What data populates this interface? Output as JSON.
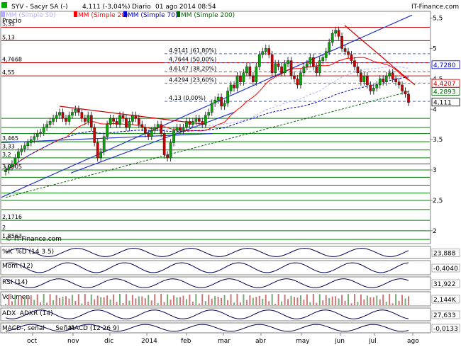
{
  "header": {
    "ticker": "SYV - Sacyr SA (-)",
    "last": "4,111 (-3,04%)",
    "period": "Diario",
    "datetime": "01 ago 2014 08:54",
    "site": "IT-Finance.com"
  },
  "legend": {
    "price": "Precio",
    "mm50": "MM (Simple 50)",
    "mm20": "MM (Simple 20)",
    "mm70": "MM (Simple 70)",
    "mm200": "MM (Simple 200)"
  },
  "watermark": "© IT-Finance.com",
  "colors": {
    "up": "#00aa00",
    "down": "#cc0000",
    "mm20": "#ff0000",
    "mm50": "#b0b0ff",
    "mm70": "#0000cc",
    "mm200": "#006600",
    "support": "#008000",
    "resist": "#cc0000",
    "fib": "#5070c0"
  },
  "chart_data": {
    "type": "candlestick",
    "x_ticks": [
      "oct",
      "nov",
      "dic",
      "2014",
      "feb",
      "mar",
      "abr",
      "may",
      "jun",
      "jul",
      "ago"
    ],
    "y_ticks": [
      "5,5",
      "5",
      "4,5",
      "4",
      "3,5",
      "3",
      "2,5",
      "2"
    ],
    "ylim": [
      1.8,
      5.6
    ],
    "left_levels": [
      {
        "label": "5,35",
        "value": 5.35
      },
      {
        "label": "5,13",
        "value": 5.13
      },
      {
        "label": "4,7668",
        "value": 4.7668
      },
      {
        "label": "4,55",
        "value": 4.55
      },
      {
        "label": "3,465",
        "value": 3.465
      },
      {
        "label": "3,33",
        "value": 3.33
      },
      {
        "label": "3,2",
        "value": 3.2
      },
      {
        "label": "3,0005",
        "value": 3.0005
      },
      {
        "label": "2,1716",
        "value": 2.1716
      },
      {
        "label": "2",
        "value": 2.0
      },
      {
        "label": "1,8563",
        "value": 1.8563
      }
    ],
    "fibonacci": [
      {
        "label": "4,9141 (61,80%)",
        "value": 4.9141
      },
      {
        "label": "4,7644 (50,00%)",
        "value": 4.7644
      },
      {
        "label": "4,6147 (38,20%)",
        "value": 4.6147
      },
      {
        "label": "4,4294 (23,60%)",
        "value": 4.4294
      },
      {
        "label": "4,13 (0,00%)",
        "value": 4.13
      }
    ],
    "right_labels": [
      {
        "label": "4,7280",
        "value": 4.728,
        "color": "#0000cc"
      },
      {
        "label": "4,4207",
        "value": 4.4207,
        "color": "#cc0000"
      },
      {
        "label": "4,2893",
        "value": 4.2893,
        "color": "#006600"
      },
      {
        "label": "4,111",
        "value": 4.111,
        "color": "#000000"
      }
    ],
    "closes": [
      3.0,
      3.05,
      3.1,
      3.2,
      3.3,
      3.35,
      3.4,
      3.45,
      3.5,
      3.55,
      3.6,
      3.62,
      3.7,
      3.75,
      3.8,
      3.85,
      3.9,
      3.95,
      3.85,
      3.8,
      3.9,
      3.95,
      4.0,
      3.95,
      3.85,
      3.8,
      3.9,
      3.7,
      3.45,
      3.2,
      3.3,
      3.55,
      3.75,
      3.85,
      3.8,
      3.75,
      3.9,
      3.85,
      3.7,
      3.8,
      3.9,
      3.85,
      3.75,
      3.7,
      3.6,
      3.55,
      3.65,
      3.7,
      3.75,
      3.6,
      3.25,
      3.2,
      3.45,
      3.65,
      3.7,
      3.65,
      3.7,
      3.8,
      3.75,
      3.8,
      3.85,
      3.8,
      3.75,
      3.9,
      3.95,
      4.1,
      4.15,
      4.2,
      4.05,
      4.1,
      4.3,
      4.4,
      4.35,
      4.55,
      4.45,
      4.6,
      4.7,
      4.55,
      4.45,
      4.7,
      4.9,
      4.95,
      5.0,
      4.9,
      4.6,
      4.75,
      4.7,
      4.6,
      4.75,
      4.8,
      4.55,
      4.5,
      4.4,
      4.6,
      4.7,
      4.75,
      4.85,
      4.7,
      4.6,
      4.8,
      4.85,
      4.95,
      5.1,
      5.25,
      5.3,
      5.2,
      5.0,
      4.95,
      4.9,
      4.8,
      4.7,
      4.6,
      4.45,
      4.55,
      4.4,
      4.3,
      4.35,
      4.4,
      4.5,
      4.45,
      4.55,
      4.6,
      4.5,
      4.45,
      4.4,
      4.3,
      4.25,
      4.111
    ],
    "indicators": [
      {
        "label": "%K",
        "sub": "%D (14 3 5)",
        "value": "23,888"
      },
      {
        "label": "Mom (12)",
        "value": "-0,4040"
      },
      {
        "label": "RSI (14)",
        "value": "31,922"
      },
      {
        "label": "Volumen",
        "value": "2,144K"
      },
      {
        "label": "ADX",
        "sub": "ADXR (14)",
        "value": "27,633"
      },
      {
        "label": "MACD-, señal",
        "sub": "Señal",
        "sub2": "MACD (12 26 9)",
        "value": "-0,0133"
      }
    ]
  }
}
